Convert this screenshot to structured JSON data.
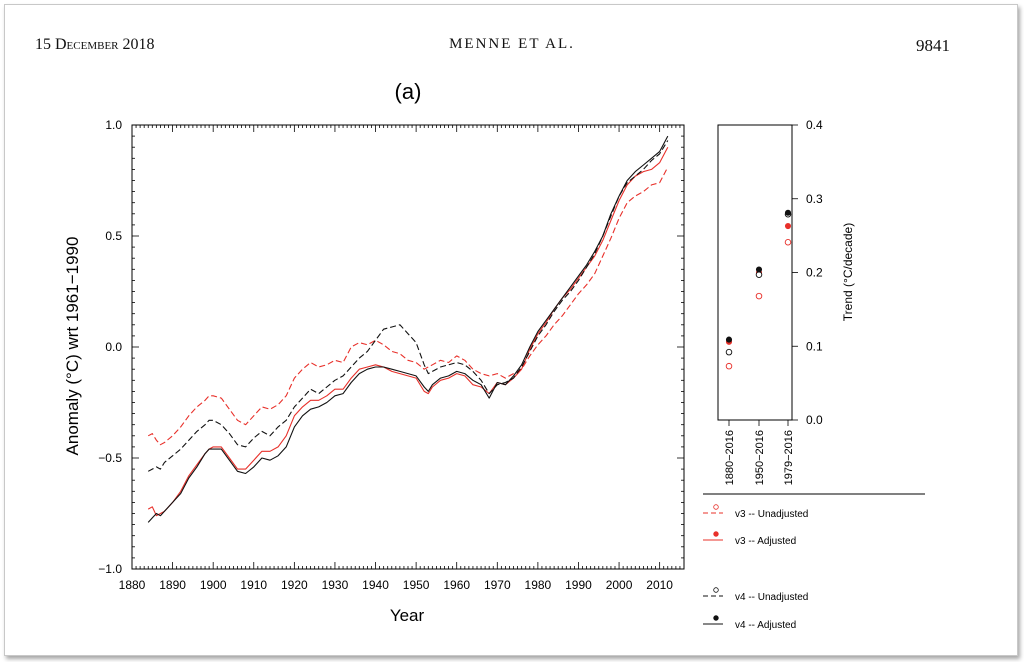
{
  "header": {
    "date": "15 December 2018",
    "authors": "MENNE ET AL.",
    "page_number": "9841"
  },
  "chart_data": [
    {
      "type": "line",
      "panel_label": "(a)",
      "xlabel": "Year",
      "ylabel": "Anomaly (°C) wrt 1961−1990",
      "xlim": [
        1880,
        2016
      ],
      "ylim": [
        -1.0,
        1.0
      ],
      "x_ticks": [
        1880,
        1890,
        1900,
        1910,
        1920,
        1930,
        1940,
        1950,
        1960,
        1970,
        1980,
        1990,
        2000,
        2010
      ],
      "y_ticks": [
        -1.0,
        -0.5,
        0.0,
        0.5,
        1.0
      ],
      "y_tick_labels": [
        "−1.0",
        "−0.5",
        "0.0",
        "0.5",
        "1.0"
      ],
      "grid": false,
      "series": [
        {
          "name": "v3 -- Unadjusted",
          "color": "#e8302a",
          "dash": true,
          "x": [
            1884,
            1885,
            1886,
            1887,
            1888,
            1890,
            1892,
            1894,
            1896,
            1898,
            1899,
            1900,
            1902,
            1904,
            1906,
            1908,
            1910,
            1912,
            1914,
            1916,
            1918,
            1920,
            1922,
            1924,
            1926,
            1928,
            1930,
            1932,
            1934,
            1936,
            1938,
            1940,
            1942,
            1944,
            1946,
            1948,
            1950,
            1952,
            1953,
            1954,
            1956,
            1958,
            1960,
            1962,
            1964,
            1966,
            1968,
            1970,
            1972,
            1974,
            1976,
            1978,
            1980,
            1982,
            1984,
            1986,
            1988,
            1990,
            1992,
            1994,
            1996,
            1998,
            2000,
            2002,
            2004,
            2006,
            2008,
            2010,
            2012
          ],
          "y": [
            -0.4,
            -0.39,
            -0.42,
            -0.44,
            -0.43,
            -0.4,
            -0.36,
            -0.31,
            -0.27,
            -0.24,
            -0.22,
            -0.22,
            -0.23,
            -0.28,
            -0.33,
            -0.35,
            -0.31,
            -0.27,
            -0.28,
            -0.26,
            -0.22,
            -0.14,
            -0.1,
            -0.07,
            -0.09,
            -0.08,
            -0.06,
            -0.07,
            0.0,
            0.02,
            0.01,
            0.03,
            0.01,
            -0.02,
            -0.03,
            -0.06,
            -0.07,
            -0.1,
            -0.09,
            -0.08,
            -0.06,
            -0.07,
            -0.04,
            -0.06,
            -0.1,
            -0.12,
            -0.13,
            -0.12,
            -0.14,
            -0.12,
            -0.1,
            -0.04,
            0.01,
            0.05,
            0.1,
            0.14,
            0.19,
            0.24,
            0.28,
            0.33,
            0.41,
            0.49,
            0.58,
            0.65,
            0.68,
            0.7,
            0.73,
            0.74,
            0.81
          ]
        },
        {
          "name": "v3 -- Adjusted",
          "color": "#e8302a",
          "dash": false,
          "x": [
            1884,
            1885,
            1886,
            1887,
            1888,
            1890,
            1892,
            1894,
            1896,
            1898,
            1899,
            1900,
            1902,
            1904,
            1906,
            1908,
            1910,
            1912,
            1914,
            1916,
            1918,
            1920,
            1922,
            1924,
            1926,
            1928,
            1930,
            1932,
            1934,
            1936,
            1938,
            1940,
            1942,
            1944,
            1946,
            1948,
            1950,
            1952,
            1953,
            1954,
            1956,
            1958,
            1960,
            1962,
            1964,
            1966,
            1968,
            1970,
            1972,
            1974,
            1976,
            1978,
            1980,
            1982,
            1984,
            1986,
            1988,
            1990,
            1992,
            1994,
            1996,
            1998,
            2000,
            2002,
            2004,
            2006,
            2008,
            2010,
            2012
          ],
          "y": [
            -0.73,
            -0.72,
            -0.76,
            -0.75,
            -0.74,
            -0.7,
            -0.65,
            -0.58,
            -0.53,
            -0.48,
            -0.46,
            -0.45,
            -0.45,
            -0.5,
            -0.55,
            -0.55,
            -0.51,
            -0.47,
            -0.47,
            -0.45,
            -0.4,
            -0.31,
            -0.27,
            -0.24,
            -0.24,
            -0.22,
            -0.19,
            -0.19,
            -0.14,
            -0.1,
            -0.09,
            -0.08,
            -0.09,
            -0.11,
            -0.12,
            -0.13,
            -0.14,
            -0.2,
            -0.21,
            -0.18,
            -0.15,
            -0.14,
            -0.12,
            -0.13,
            -0.17,
            -0.18,
            -0.21,
            -0.16,
            -0.17,
            -0.14,
            -0.1,
            -0.01,
            0.06,
            0.11,
            0.17,
            0.22,
            0.26,
            0.31,
            0.36,
            0.41,
            0.48,
            0.57,
            0.66,
            0.73,
            0.77,
            0.79,
            0.8,
            0.83,
            0.9
          ]
        },
        {
          "name": "v4 -- Unadjusted",
          "color": "#111111",
          "dash": true,
          "x": [
            1884,
            1885,
            1886,
            1887,
            1888,
            1890,
            1892,
            1894,
            1896,
            1898,
            1899,
            1900,
            1902,
            1904,
            1906,
            1908,
            1910,
            1912,
            1914,
            1916,
            1918,
            1920,
            1922,
            1924,
            1926,
            1928,
            1930,
            1932,
            1934,
            1936,
            1938,
            1940,
            1942,
            1944,
            1946,
            1948,
            1950,
            1952,
            1953,
            1954,
            1956,
            1958,
            1960,
            1962,
            1964,
            1966,
            1968,
            1970,
            1972,
            1974,
            1976,
            1978,
            1980,
            1982,
            1984,
            1986,
            1988,
            1990,
            1992,
            1994,
            1996,
            1998,
            2000,
            2002,
            2004,
            2006,
            2008,
            2010,
            2012
          ],
          "y": [
            -0.56,
            -0.55,
            -0.54,
            -0.55,
            -0.52,
            -0.49,
            -0.46,
            -0.42,
            -0.38,
            -0.35,
            -0.33,
            -0.33,
            -0.35,
            -0.39,
            -0.44,
            -0.45,
            -0.41,
            -0.38,
            -0.4,
            -0.36,
            -0.33,
            -0.27,
            -0.23,
            -0.19,
            -0.21,
            -0.18,
            -0.15,
            -0.13,
            -0.09,
            -0.05,
            -0.02,
            0.03,
            0.08,
            0.09,
            0.1,
            0.06,
            0.02,
            -0.08,
            -0.12,
            -0.11,
            -0.09,
            -0.08,
            -0.07,
            -0.08,
            -0.11,
            -0.15,
            -0.21,
            -0.17,
            -0.16,
            -0.14,
            -0.09,
            -0.02,
            0.05,
            0.1,
            0.16,
            0.21,
            0.25,
            0.3,
            0.36,
            0.42,
            0.5,
            0.59,
            0.68,
            0.74,
            0.77,
            0.8,
            0.84,
            0.87,
            0.93
          ]
        },
        {
          "name": "v4 -- Adjusted",
          "color": "#111111",
          "dash": false,
          "x": [
            1884,
            1885,
            1886,
            1887,
            1888,
            1890,
            1892,
            1894,
            1896,
            1898,
            1899,
            1900,
            1902,
            1904,
            1906,
            1908,
            1910,
            1912,
            1914,
            1916,
            1918,
            1920,
            1922,
            1924,
            1926,
            1928,
            1930,
            1932,
            1934,
            1936,
            1938,
            1940,
            1942,
            1944,
            1946,
            1948,
            1950,
            1952,
            1953,
            1954,
            1956,
            1958,
            1960,
            1962,
            1964,
            1966,
            1968,
            1970,
            1972,
            1974,
            1976,
            1978,
            1980,
            1982,
            1984,
            1986,
            1988,
            1990,
            1992,
            1994,
            1996,
            1998,
            2000,
            2002,
            2004,
            2006,
            2008,
            2010,
            2012
          ],
          "y": [
            -0.79,
            -0.77,
            -0.75,
            -0.76,
            -0.74,
            -0.7,
            -0.66,
            -0.59,
            -0.54,
            -0.48,
            -0.46,
            -0.46,
            -0.46,
            -0.51,
            -0.56,
            -0.57,
            -0.54,
            -0.5,
            -0.51,
            -0.49,
            -0.45,
            -0.36,
            -0.31,
            -0.28,
            -0.27,
            -0.25,
            -0.22,
            -0.21,
            -0.16,
            -0.12,
            -0.1,
            -0.09,
            -0.09,
            -0.1,
            -0.11,
            -0.12,
            -0.13,
            -0.18,
            -0.2,
            -0.17,
            -0.14,
            -0.13,
            -0.11,
            -0.12,
            -0.15,
            -0.17,
            -0.23,
            -0.16,
            -0.17,
            -0.13,
            -0.08,
            0.0,
            0.07,
            0.12,
            0.17,
            0.22,
            0.27,
            0.32,
            0.37,
            0.43,
            0.5,
            0.6,
            0.68,
            0.75,
            0.79,
            0.82,
            0.85,
            0.88,
            0.95
          ]
        }
      ]
    },
    {
      "type": "scatter",
      "ylabel": "Trend (°C/decade)",
      "ylim": [
        0.0,
        0.4
      ],
      "y_ticks": [
        0.0,
        0.1,
        0.2,
        0.3,
        0.4
      ],
      "y_tick_labels": [
        "0.0",
        "0.1",
        "0.2",
        "0.3",
        "0.4"
      ],
      "categories": [
        "1880−2016",
        "1950−2016",
        "1979−2016"
      ],
      "series": [
        {
          "name": "v3 -- Unadjusted",
          "color": "#e8302a",
          "marker": "open",
          "values": [
            0.073,
            0.168,
            0.241
          ]
        },
        {
          "name": "v3 -- Adjusted",
          "color": "#e8302a",
          "marker": "filled",
          "values": [
            0.106,
            0.2,
            0.263
          ]
        },
        {
          "name": "v4 -- Unadjusted",
          "color": "#111111",
          "marker": "open",
          "values": [
            0.092,
            0.197,
            0.279
          ]
        },
        {
          "name": "v4 -- Adjusted",
          "color": "#111111",
          "marker": "filled",
          "values": [
            0.109,
            0.204,
            0.281
          ]
        }
      ]
    }
  ]
}
